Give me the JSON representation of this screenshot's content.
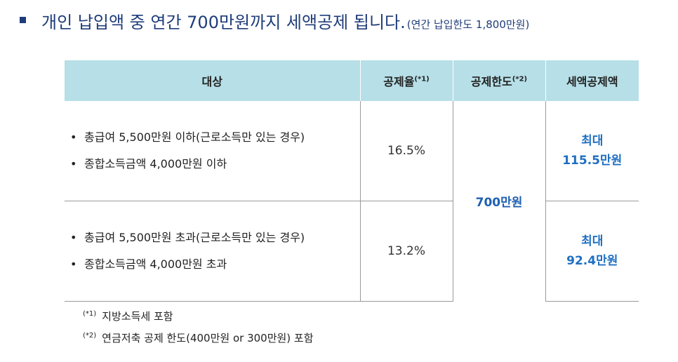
{
  "heading": {
    "main": "개인 납입액 중 연간 700만원까지 세액공제 됩니다.",
    "note": "(연간 납입한도 1,800만원)"
  },
  "table": {
    "headers": {
      "target": "대상",
      "rate": "공제율",
      "rate_mark": "(*1)",
      "limit": "공제한도",
      "limit_mark": "(*2)",
      "amount": "세액공제액"
    },
    "rows": [
      {
        "conditions": [
          "총급여 5,500만원 이하(근로소득만 있는 경우)",
          "종합소득금액 4,000만원 이하"
        ],
        "rate": "16.5%",
        "amount_line1": "최대",
        "amount_line2": "115.5만원"
      },
      {
        "conditions": [
          "총급여 5,500만원 초과(근로소득만 있는 경우)",
          "종합소득금액 4,000만원 초과"
        ],
        "rate": "13.2%",
        "amount_line1": "최대",
        "amount_line2": "92.4만원"
      }
    ],
    "limit_value": "700만원"
  },
  "footnotes": [
    {
      "mark": "(*1)",
      "text": "지방소득세 포함"
    },
    {
      "mark": "(*2)",
      "text": "연금저축 공제 한도(400만원 or 300만원) 포함"
    }
  ],
  "colors": {
    "heading": "#1f3d7a",
    "header_bg": "#b7dfe7",
    "accent_blue": "#1f6fc2"
  }
}
